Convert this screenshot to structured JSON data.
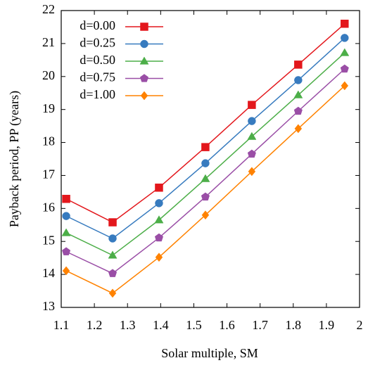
{
  "chart_data": {
    "type": "line",
    "xlabel": "Solar multiple, SM",
    "ylabel": "Payback period, PP (years)",
    "x": [
      1.115,
      1.255,
      1.395,
      1.535,
      1.675,
      1.815,
      1.955
    ],
    "xlim": [
      1.1,
      2
    ],
    "xticks": [
      1.1,
      1.2,
      1.3,
      1.4,
      1.5,
      1.6,
      1.7,
      1.8,
      1.9,
      2
    ],
    "ylim": [
      13,
      22
    ],
    "yticks": [
      13,
      14,
      15,
      16,
      17,
      18,
      19,
      20,
      21,
      22
    ],
    "legend": "upper left",
    "series": [
      {
        "name": "d=0.00",
        "color": "#e3171c",
        "marker": "square",
        "values": [
          16.29,
          15.58,
          16.63,
          17.86,
          19.14,
          20.36,
          21.6
        ]
      },
      {
        "name": "d=0.25",
        "color": "#377bbf",
        "marker": "circle",
        "values": [
          15.77,
          15.09,
          16.16,
          17.37,
          18.65,
          19.89,
          21.17
        ]
      },
      {
        "name": "d=0.50",
        "color": "#4cae48",
        "marker": "triangle",
        "values": [
          15.26,
          14.58,
          15.65,
          16.9,
          18.18,
          19.44,
          20.72
        ]
      },
      {
        "name": "d=0.75",
        "color": "#9a4ea6",
        "marker": "pentagon",
        "values": [
          14.69,
          14.03,
          15.11,
          16.35,
          17.65,
          18.95,
          20.23
        ]
      },
      {
        "name": "d=1.00",
        "color": "#ff8200",
        "marker": "diamond",
        "values": [
          14.11,
          13.43,
          14.52,
          15.8,
          17.12,
          18.42,
          19.72
        ]
      }
    ]
  }
}
